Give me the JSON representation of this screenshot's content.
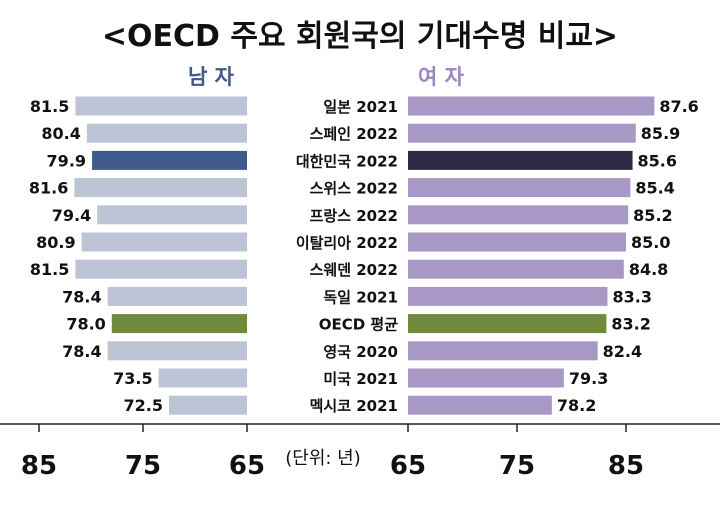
{
  "title": "<OECD 주요 회원국의 기대수명 비교>",
  "unit_label": "(단위: 년)",
  "colors": {
    "male_bar": "#bcc4d6",
    "male_highlight": "#3f5a8c",
    "female_bar": "#a898c6",
    "female_highlight": "#2f2744",
    "oecd_bar": "#6f8a3a",
    "male_heading": "#3f5a8c",
    "female_heading": "#9a86c0"
  },
  "chart_data": [
    {
      "type": "bar",
      "orientation": "horizontal",
      "direction": "right-to-left",
      "title": "남 자",
      "categories": [
        "일본 2021",
        "스페인 2022",
        "대한민국 2022",
        "스위스 2022",
        "프랑스 2022",
        "이탈리아 2022",
        "스웨덴 2022",
        "독일 2021",
        "OECD 평균",
        "영국 2020",
        "미국 2021",
        "멕시코 2021"
      ],
      "values": [
        81.5,
        80.4,
        79.9,
        81.6,
        79.4,
        80.9,
        81.5,
        78.4,
        78.0,
        78.4,
        73.5,
        72.5
      ],
      "xlim": [
        65,
        90
      ],
      "xticks": [
        "85",
        "75",
        "65"
      ],
      "highlight": {
        "대한민국 2022": "male_highlight",
        "OECD 평균": "oecd_bar"
      }
    },
    {
      "type": "bar",
      "orientation": "horizontal",
      "title": "여 자",
      "categories": [
        "일본 2021",
        "스페인 2022",
        "대한민국 2022",
        "스위스 2022",
        "프랑스 2022",
        "이탈리아 2022",
        "스웨덴 2022",
        "독일 2021",
        "OECD 평균",
        "영국 2020",
        "미국 2021",
        "멕시코 2021"
      ],
      "values": [
        87.6,
        85.9,
        85.6,
        85.4,
        85.2,
        85.0,
        84.8,
        83.3,
        83.2,
        82.4,
        79.3,
        78.2
      ],
      "xlim": [
        65,
        90
      ],
      "xticks": [
        "65",
        "75",
        "85"
      ],
      "highlight": {
        "대한민국 2022": "female_highlight",
        "OECD 평균": "oecd_bar"
      }
    }
  ]
}
